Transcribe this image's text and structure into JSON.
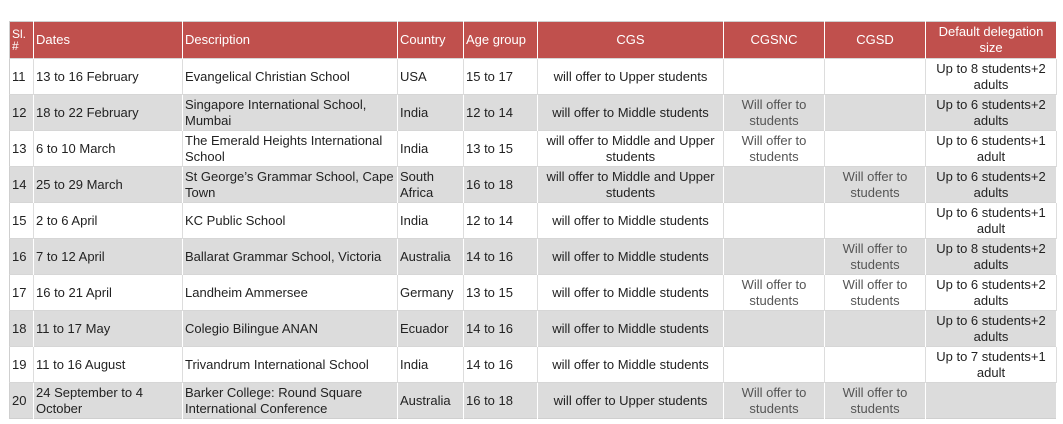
{
  "table": {
    "headers": {
      "sl": "Sl. #",
      "dates": "Dates",
      "description": "Description",
      "country": "Country",
      "age_group": "Age group",
      "cgs": "CGS",
      "cgsnc": "CGSNC",
      "cgsd": "CGSD",
      "delegation": "Default delegation size"
    },
    "rows": [
      {
        "sl": "11",
        "dates": "13 to 16 February",
        "description": "Evangelical Christian School",
        "country": "USA",
        "age_group": "15 to 17",
        "cgs": "will offer to Upper students",
        "cgsnc": "",
        "cgsd": "",
        "delegation": "Up to 8 students+2 adults"
      },
      {
        "sl": "12",
        "dates": "18 to 22 February",
        "description": "Singapore International School, Mumbai",
        "country": "India",
        "age_group": "12 to 14",
        "cgs": "will offer to Middle students",
        "cgsnc": "Will offer to students",
        "cgsd": "",
        "delegation": "Up to 6 students+2 adults"
      },
      {
        "sl": "13",
        "dates": "6 to 10 March",
        "description": "The Emerald Heights International School",
        "country": "India",
        "age_group": "13 to 15",
        "cgs": "will offer to Middle and Upper students",
        "cgsnc": "Will offer to students",
        "cgsd": "",
        "delegation": "Up to 6 students+1 adult"
      },
      {
        "sl": "14",
        "dates": "25 to 29 March",
        "description": "St George’s Grammar School, Cape Town",
        "country": "South Africa",
        "age_group": "16 to 18",
        "cgs": "will offer to Middle and Upper students",
        "cgsnc": "",
        "cgsd": "Will offer to students",
        "delegation": "Up to 6 students+2 adults"
      },
      {
        "sl": "15",
        "dates": "2 to 6 April",
        "description": "KC Public School",
        "country": "India",
        "age_group": "12 to 14",
        "cgs": "will offer to Middle students",
        "cgsnc": "",
        "cgsd": "",
        "delegation": "Up to 6 students+1 adult"
      },
      {
        "sl": "16",
        "dates": "7 to 12 April",
        "description": "Ballarat Grammar School, Victoria",
        "country": "Australia",
        "age_group": "14 to 16",
        "cgs": "will offer to Middle students",
        "cgsnc": "",
        "cgsd": "Will offer to students",
        "delegation": "Up to 8 students+2 adults"
      },
      {
        "sl": "17",
        "dates": "16 to 21 April",
        "description": "Landheim Ammersee",
        "country": "Germany",
        "age_group": "13 to 15",
        "cgs": "will offer to Middle students",
        "cgsnc": "Will offer to students",
        "cgsd": "Will offer to students",
        "delegation": "Up to 6 students+2 adults"
      },
      {
        "sl": "18",
        "dates": "11 to 17 May",
        "description": "Colegio Bilingue ANAN",
        "country": "Ecuador",
        "age_group": "14 to 16",
        "cgs": "will offer to Middle students",
        "cgsnc": "",
        "cgsd": "",
        "delegation": "Up to 6 students+2 adults"
      },
      {
        "sl": "19",
        "dates": "11 to 16 August",
        "description": "Trivandrum International School",
        "country": "India",
        "age_group": "14 to 16",
        "cgs": "will offer to Middle students",
        "cgsnc": "",
        "cgsd": "",
        "delegation": "Up to 7 students+1 adult"
      },
      {
        "sl": "20",
        "dates": "24 September to 4 October",
        "description": "Barker College: Round Square International Conference",
        "country": "Australia",
        "age_group": "16 to 18",
        "cgs": "will offer to Upper students",
        "cgsnc": "Will offer to students",
        "cgsd": "Will offer to students",
        "delegation": ""
      }
    ]
  }
}
